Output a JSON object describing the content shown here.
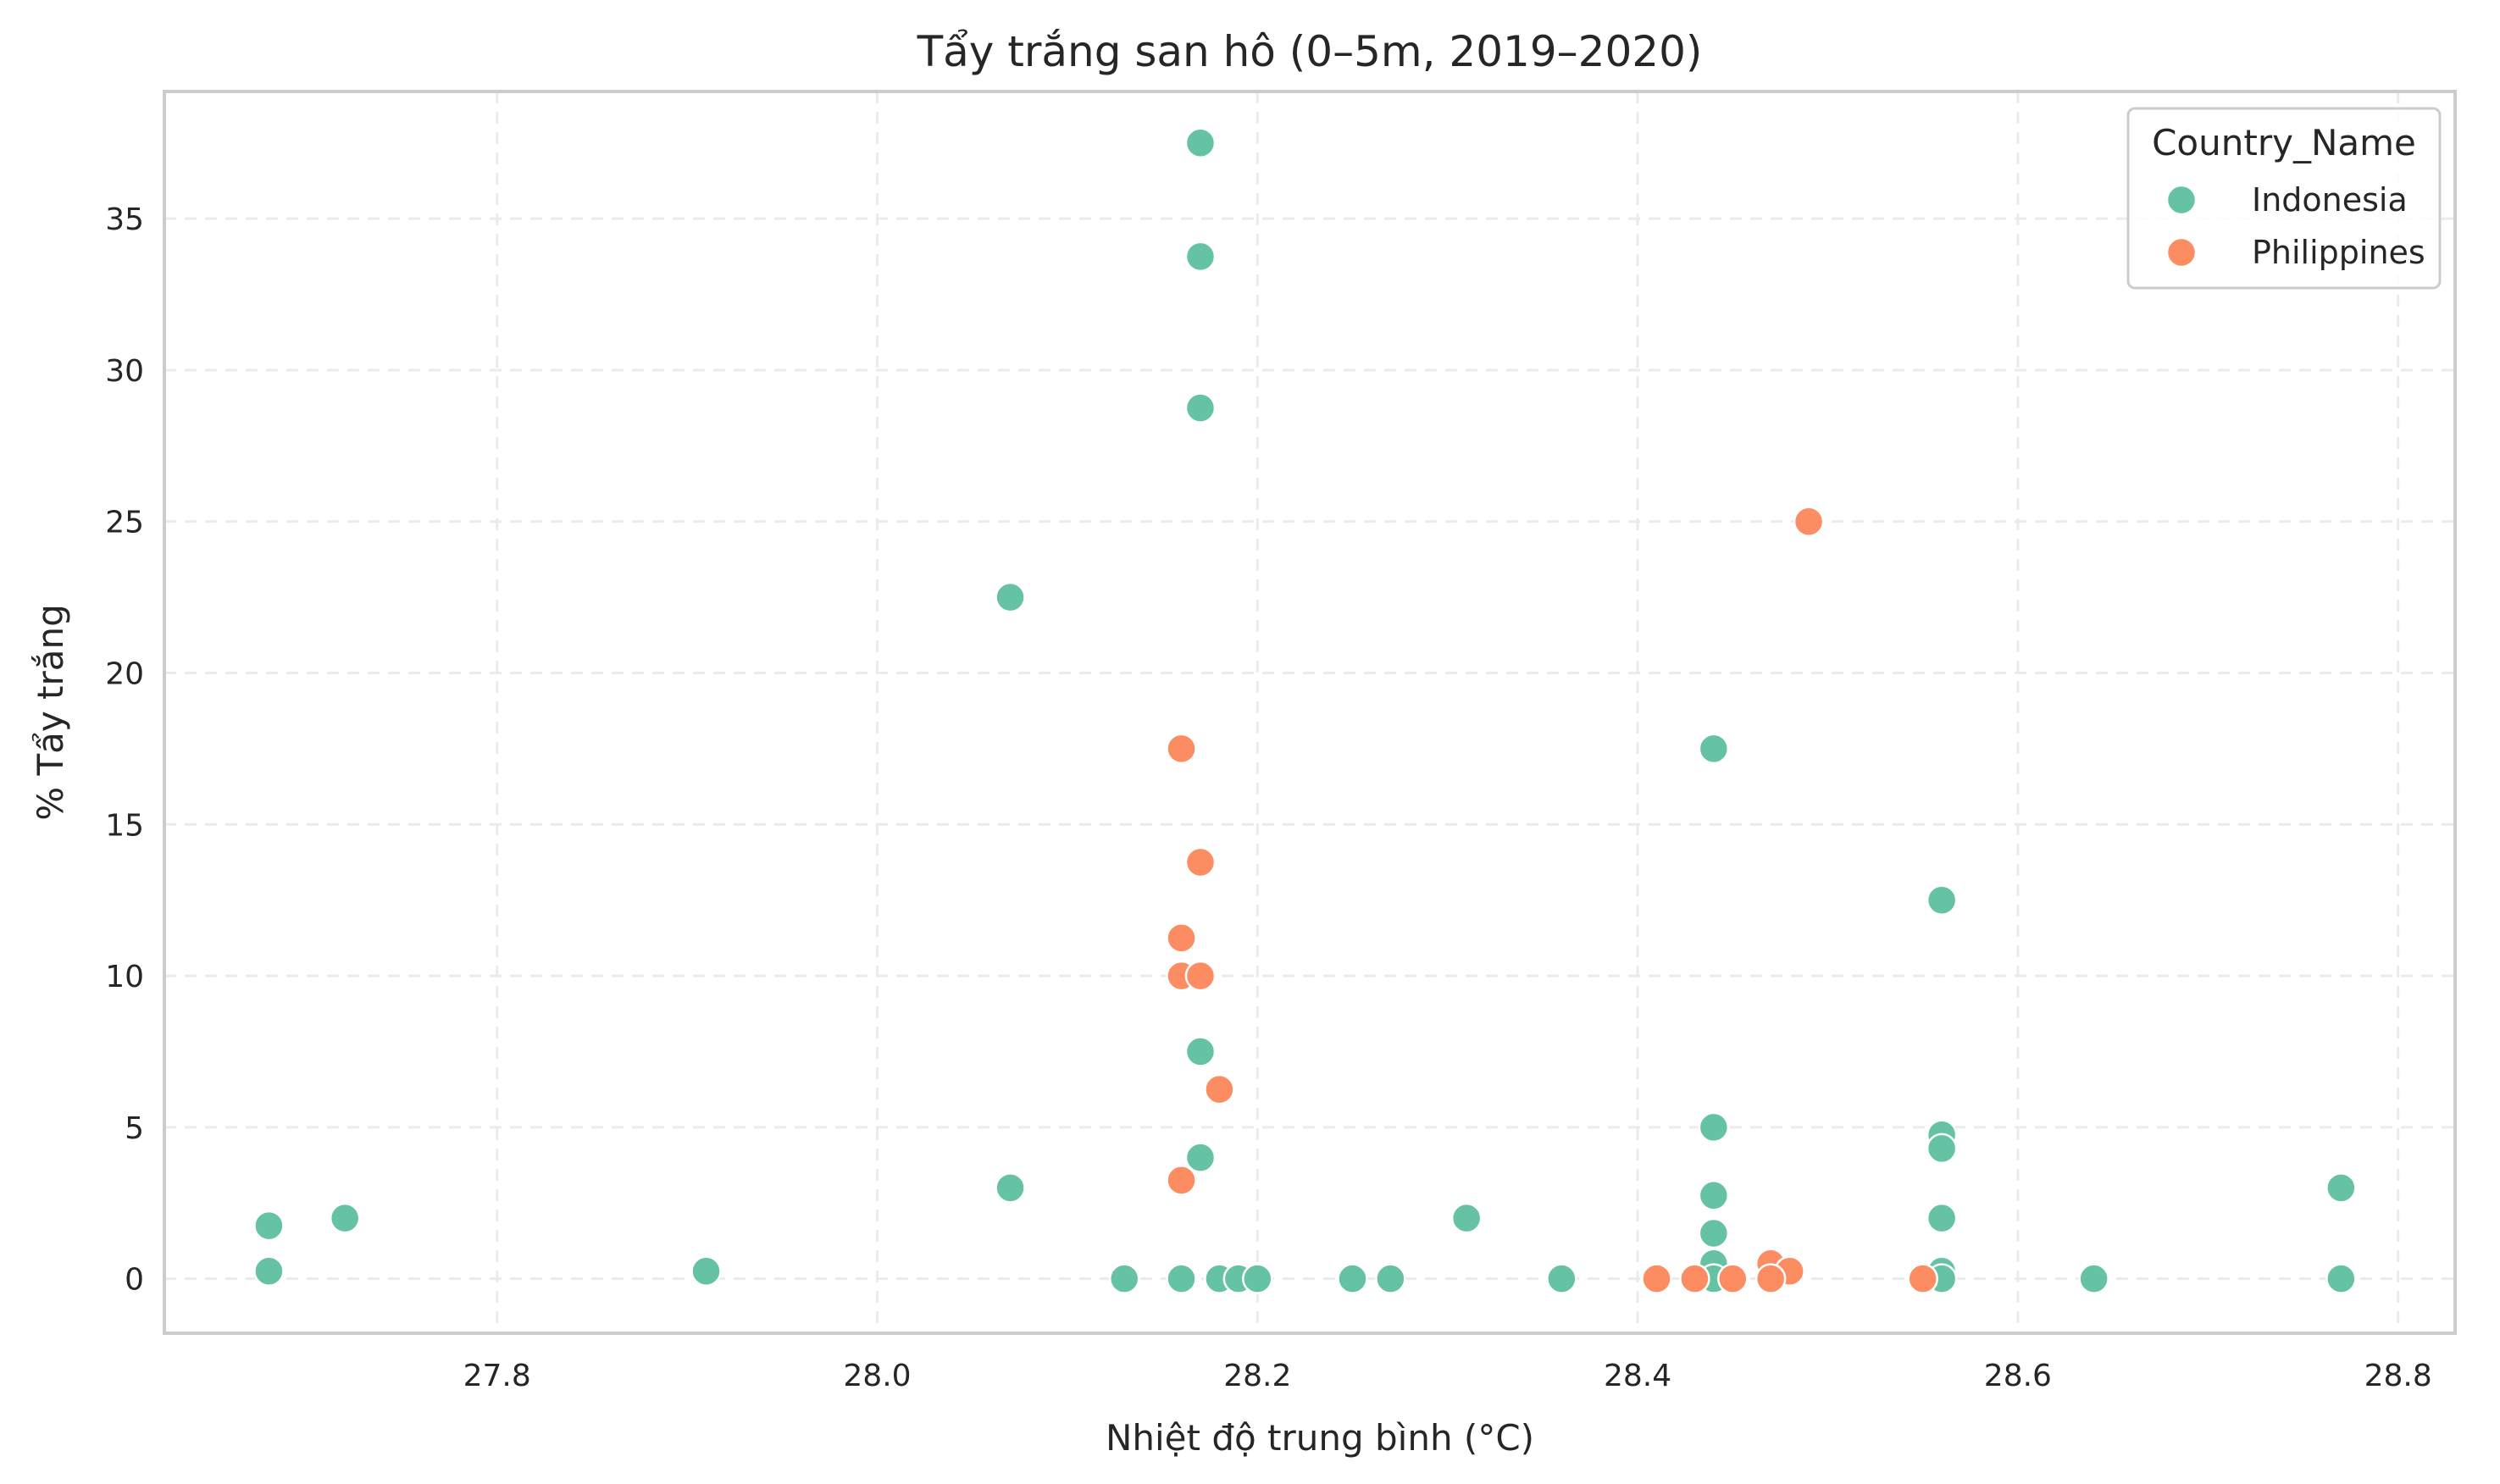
{
  "chart_data": {
    "type": "scatter",
    "title": "Tẩy trắng san hô (0–5m, 2019–2020)",
    "xlabel": "Nhiệt độ trung bình (°C)",
    "ylabel": "% Tẩy trắng",
    "xlim": [
      27.625,
      28.83
    ],
    "ylim": [
      -1.8,
      39.2
    ],
    "xticks": [
      "27.8",
      "28.0",
      "28.2",
      "28.4",
      "28.6",
      "28.8"
    ],
    "yticks": [
      "0",
      "5",
      "10",
      "15",
      "20",
      "25",
      "30",
      "35"
    ],
    "grid": true,
    "legend": {
      "title": "Country_Name",
      "position": "top-right"
    },
    "series": [
      {
        "name": "Indonesia",
        "color": "#66c2a5",
        "points": [
          [
            28.17,
            37.5
          ],
          [
            28.17,
            33.75
          ],
          [
            28.17,
            28.75
          ],
          [
            28.07,
            22.5
          ],
          [
            28.44,
            17.5
          ],
          [
            28.56,
            12.5
          ],
          [
            28.17,
            7.5
          ],
          [
            28.44,
            5.0
          ],
          [
            28.56,
            4.75
          ],
          [
            28.56,
            4.3
          ],
          [
            28.17,
            4.0
          ],
          [
            28.07,
            3.0
          ],
          [
            28.77,
            3.0
          ],
          [
            28.44,
            2.75
          ],
          [
            28.31,
            2.0
          ],
          [
            28.56,
            2.0
          ],
          [
            27.72,
            2.0
          ],
          [
            27.68,
            1.75
          ],
          [
            28.44,
            1.5
          ],
          [
            28.44,
            0.5
          ],
          [
            28.56,
            0.25
          ],
          [
            27.68,
            0.25
          ],
          [
            27.91,
            0.25
          ],
          [
            28.13,
            0.0
          ],
          [
            28.16,
            0.0
          ],
          [
            28.18,
            0.0
          ],
          [
            28.19,
            0.0
          ],
          [
            28.2,
            0.0
          ],
          [
            28.25,
            0.0
          ],
          [
            28.27,
            0.0
          ],
          [
            28.36,
            0.0
          ],
          [
            28.44,
            0.0
          ],
          [
            28.56,
            0.0
          ],
          [
            28.64,
            0.0
          ],
          [
            28.77,
            0.0
          ]
        ]
      },
      {
        "name": "Philippines",
        "color": "#fc8d62",
        "points": [
          [
            28.49,
            25.0
          ],
          [
            28.16,
            17.5
          ],
          [
            28.17,
            13.75
          ],
          [
            28.16,
            11.25
          ],
          [
            28.16,
            10.0
          ],
          [
            28.17,
            10.0
          ],
          [
            28.18,
            6.25
          ],
          [
            28.16,
            3.25
          ],
          [
            28.47,
            0.5
          ],
          [
            28.48,
            0.25
          ],
          [
            28.41,
            0.0
          ],
          [
            28.43,
            0.0
          ],
          [
            28.45,
            0.0
          ],
          [
            28.47,
            0.0
          ],
          [
            28.55,
            0.0
          ]
        ]
      }
    ]
  }
}
